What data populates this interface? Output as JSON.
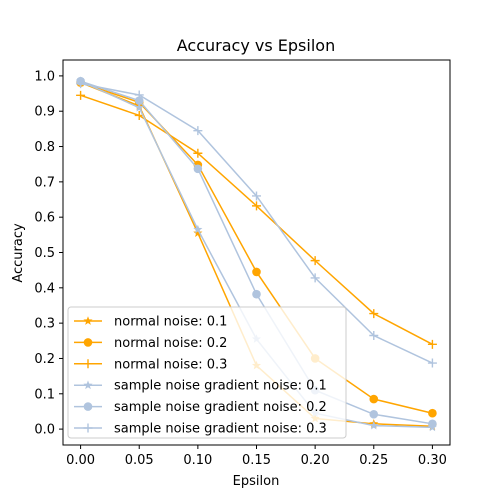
{
  "chart_data": {
    "type": "line",
    "title": "Accuracy vs Epsilon",
    "xlabel": "Epsilon",
    "ylabel": "Accuracy",
    "xlim": [
      -0.015,
      0.315
    ],
    "ylim": [
      -0.045,
      1.045
    ],
    "x_ticks": [
      "0.00",
      "0.05",
      "0.10",
      "0.15",
      "0.20",
      "0.25",
      "0.30"
    ],
    "y_ticks": [
      "0.0",
      "0.1",
      "0.2",
      "0.3",
      "0.4",
      "0.5",
      "0.6",
      "0.7",
      "0.8",
      "0.9",
      "1.0"
    ],
    "grid": false,
    "legend_position": "lower-left",
    "x": [
      0.0,
      0.05,
      0.1,
      0.15,
      0.2,
      0.25,
      0.3
    ],
    "series": [
      {
        "name": "normal noise: 0.1",
        "color": "#FFA500",
        "marker": "star",
        "values": [
          0.981,
          0.915,
          0.555,
          0.18,
          0.03,
          0.015,
          0.008
        ]
      },
      {
        "name": "normal noise: 0.2",
        "color": "#FFA500",
        "marker": "circle",
        "values": [
          0.981,
          0.925,
          0.748,
          0.445,
          0.2,
          0.085,
          0.045
        ]
      },
      {
        "name": "normal noise: 0.3",
        "color": "#FFA500",
        "marker": "plus",
        "values": [
          0.945,
          0.888,
          0.781,
          0.632,
          0.477,
          0.327,
          0.24
        ]
      },
      {
        "name": "sample noise gradient noise: 0.1",
        "color": "#B0C4DE",
        "marker": "star",
        "values": [
          0.985,
          0.91,
          0.565,
          0.255,
          0.045,
          0.01,
          0.005
        ]
      },
      {
        "name": "sample noise gradient noise: 0.2",
        "color": "#B0C4DE",
        "marker": "circle",
        "values": [
          0.985,
          0.93,
          0.737,
          0.382,
          0.11,
          0.042,
          0.015
        ]
      },
      {
        "name": "sample noise gradient noise: 0.3",
        "color": "#B0C4DE",
        "marker": "plus",
        "values": [
          0.978,
          0.946,
          0.845,
          0.66,
          0.428,
          0.265,
          0.187
        ]
      }
    ]
  }
}
